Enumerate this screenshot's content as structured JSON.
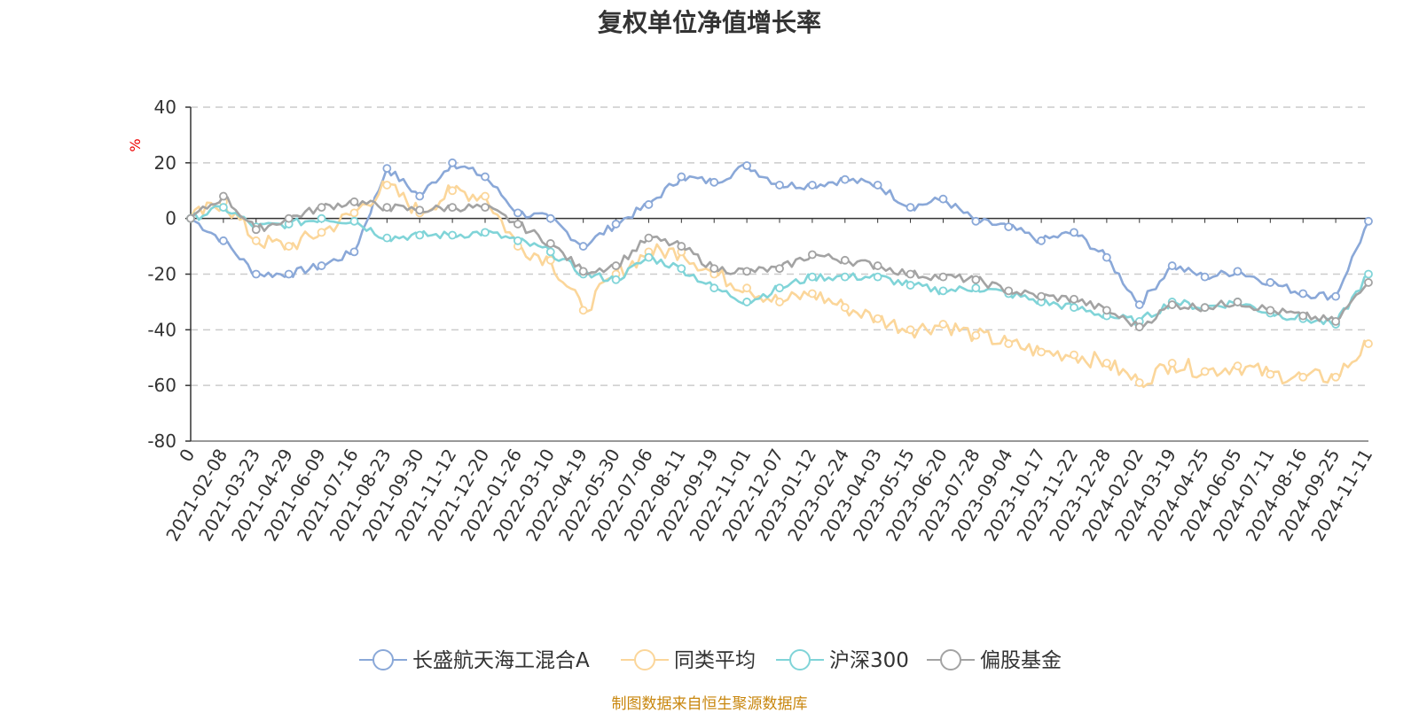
{
  "title": "复权单位净值增长率",
  "source": "制图数据来自恒生聚源数据库",
  "chart_data": {
    "type": "line",
    "title": "复权单位净值增长率",
    "ylabel": "%",
    "ylim": [
      -80,
      40
    ],
    "yticks": [
      40,
      20,
      0,
      -20,
      -40,
      -60,
      -80
    ],
    "grid": true,
    "legend_position": "bottom",
    "xticks": [
      "0",
      "2021-02-08",
      "2021-03-23",
      "2021-04-29",
      "2021-06-09",
      "2021-07-16",
      "2021-08-23",
      "2021-09-30",
      "2021-11-12",
      "2021-12-20",
      "2022-01-26",
      "2022-03-10",
      "2022-04-19",
      "2022-05-30",
      "2022-07-06",
      "2022-08-11",
      "2022-09-19",
      "2022-11-01",
      "2022-12-07",
      "2023-01-12",
      "2023-02-24",
      "2023-04-03",
      "2023-05-15",
      "2023-06-20",
      "2023-07-28",
      "2023-09-04",
      "2023-10-17",
      "2023-11-22",
      "2023-12-28",
      "2024-02-02",
      "2024-03-19",
      "2024-04-25",
      "2024-06-05",
      "2024-07-11",
      "2024-08-16",
      "2024-09-25",
      "2024-11-11"
    ],
    "series": [
      {
        "name": "长盛航天海工混合A",
        "color": "#8aa8d8",
        "values": [
          0,
          -8,
          -20,
          -20,
          -17,
          -12,
          18,
          8,
          20,
          15,
          2,
          0,
          -10,
          -2,
          5,
          15,
          13,
          19,
          12,
          12,
          14,
          12,
          4,
          7,
          -1,
          -3,
          -8,
          -5,
          -14,
          -31,
          -17,
          -21,
          -19,
          -23,
          -27,
          -28,
          -1
        ]
      },
      {
        "name": "同类平均",
        "color": "#fbd69a",
        "values": [
          0,
          6,
          -8,
          -10,
          -5,
          2,
          12,
          2,
          10,
          8,
          -10,
          -15,
          -33,
          -20,
          -12,
          -12,
          -20,
          -25,
          -30,
          -27,
          -32,
          -36,
          -40,
          -38,
          -42,
          -45,
          -48,
          -49,
          -52,
          -59,
          -52,
          -55,
          -53,
          -56,
          -57,
          -57,
          -45
        ]
      },
      {
        "name": "沪深300",
        "color": "#80d4d8",
        "values": [
          0,
          4,
          -3,
          -2,
          0,
          -1,
          -7,
          -6,
          -6,
          -5,
          -8,
          -12,
          -20,
          -22,
          -14,
          -18,
          -25,
          -30,
          -25,
          -21,
          -21,
          -21,
          -24,
          -26,
          -25,
          -27,
          -30,
          -32,
          -35,
          -37,
          -30,
          -32,
          -30,
          -34,
          -36,
          -38,
          -20
        ]
      },
      {
        "name": "偏股基金",
        "color": "#a3a3a3",
        "values": [
          0,
          8,
          -4,
          0,
          4,
          6,
          4,
          3,
          4,
          4,
          -2,
          -9,
          -19,
          -17,
          -7,
          -10,
          -18,
          -19,
          -18,
          -13,
          -15,
          -17,
          -20,
          -21,
          -22,
          -26,
          -28,
          -29,
          -33,
          -39,
          -31,
          -32,
          -30,
          -33,
          -35,
          -37,
          -23
        ]
      }
    ]
  }
}
